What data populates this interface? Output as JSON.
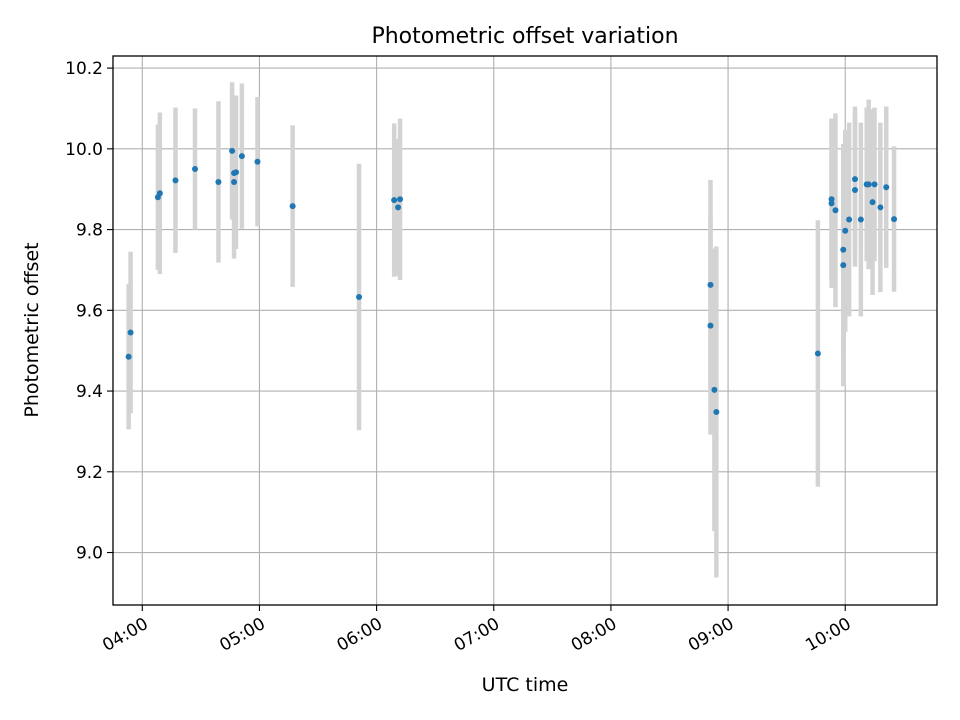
{
  "chart_data": {
    "type": "scatter",
    "title": "Photometric offset variation",
    "xlabel": "UTC time",
    "ylabel": "Photometric offset",
    "x_unit": "UTC time (HH:MM)",
    "xlim": [
      "03:45",
      "10:47"
    ],
    "ylim": [
      8.87,
      10.23
    ],
    "xticks": [
      "04:00",
      "05:00",
      "06:00",
      "07:00",
      "08:00",
      "09:00",
      "10:00"
    ],
    "yticks": [
      "9.0",
      "9.2",
      "9.4",
      "9.6",
      "9.8",
      "10.0",
      "10.2"
    ],
    "ytick_values": [
      9.0,
      9.2,
      9.4,
      9.6,
      9.8,
      10.0,
      10.2
    ],
    "grid": true,
    "colors": {
      "points": "#1f77b4",
      "errorbars": "#d3d3d3",
      "grid": "#b0b0b0"
    },
    "points": [
      {
        "x": "03:53",
        "y": 9.485,
        "yerr": 0.18
      },
      {
        "x": "03:54",
        "y": 9.545,
        "yerr": 0.2
      },
      {
        "x": "04:08",
        "y": 9.88,
        "yerr": 0.18
      },
      {
        "x": "04:09",
        "y": 9.89,
        "yerr": 0.2
      },
      {
        "x": "04:17",
        "y": 9.922,
        "yerr": 0.18
      },
      {
        "x": "04:27",
        "y": 9.95,
        "yerr": 0.15
      },
      {
        "x": "04:39",
        "y": 9.918,
        "yerr": 0.2
      },
      {
        "x": "04:46",
        "y": 9.995,
        "yerr": 0.17
      },
      {
        "x": "04:47",
        "y": 9.94,
        "yerr": 0.12
      },
      {
        "x": "04:47",
        "y": 9.918,
        "yerr": 0.19
      },
      {
        "x": "04:48",
        "y": 9.942,
        "yerr": 0.19
      },
      {
        "x": "04:51",
        "y": 9.982,
        "yerr": 0.18
      },
      {
        "x": "04:59",
        "y": 9.968,
        "yerr": 0.16
      },
      {
        "x": "05:17",
        "y": 9.858,
        "yerr": 0.2
      },
      {
        "x": "05:51",
        "y": 9.633,
        "yerr": 0.33
      },
      {
        "x": "06:09",
        "y": 9.873,
        "yerr": 0.19
      },
      {
        "x": "06:11",
        "y": 9.855,
        "yerr": 0.17
      },
      {
        "x": "06:12",
        "y": 9.875,
        "yerr": 0.2
      },
      {
        "x": "08:51",
        "y": 9.663,
        "yerr": 0.26
      },
      {
        "x": "08:51",
        "y": 9.562,
        "yerr": 0.27
      },
      {
        "x": "08:53",
        "y": 9.403,
        "yerr": 0.35
      },
      {
        "x": "08:54",
        "y": 9.348,
        "yerr": 0.41
      },
      {
        "x": "09:46",
        "y": 9.493,
        "yerr": 0.33
      },
      {
        "x": "09:53",
        "y": 9.875,
        "yerr": 0.2
      },
      {
        "x": "09:53",
        "y": 9.865,
        "yerr": 0.21
      },
      {
        "x": "09:55",
        "y": 9.848,
        "yerr": 0.24
      },
      {
        "x": "09:59",
        "y": 9.712,
        "yerr": 0.3
      },
      {
        "x": "09:59",
        "y": 9.75,
        "yerr": 0.26
      },
      {
        "x": "10:00",
        "y": 9.797,
        "yerr": 0.25
      },
      {
        "x": "10:02",
        "y": 9.825,
        "yerr": 0.24
      },
      {
        "x": "10:05",
        "y": 9.925,
        "yerr": 0.18
      },
      {
        "x": "10:05",
        "y": 9.898,
        "yerr": 0.19
      },
      {
        "x": "10:08",
        "y": 9.825,
        "yerr": 0.24
      },
      {
        "x": "10:11",
        "y": 9.912,
        "yerr": 0.19
      },
      {
        "x": "10:12",
        "y": 9.912,
        "yerr": 0.21
      },
      {
        "x": "10:14",
        "y": 9.868,
        "yerr": 0.23
      },
      {
        "x": "10:15",
        "y": 9.912,
        "yerr": 0.19
      },
      {
        "x": "10:18",
        "y": 9.855,
        "yerr": 0.21
      },
      {
        "x": "10:21",
        "y": 9.905,
        "yerr": 0.2
      },
      {
        "x": "10:25",
        "y": 9.826,
        "yerr": 0.18
      }
    ]
  }
}
